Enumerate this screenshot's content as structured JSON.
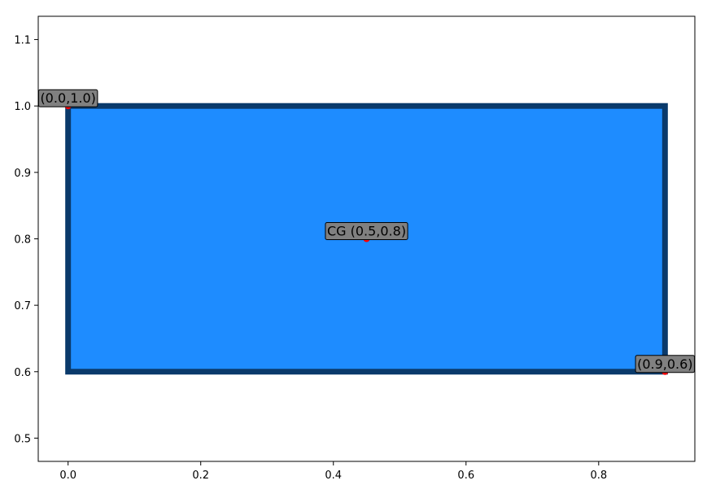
{
  "chart_data": {
    "type": "shape",
    "title": "",
    "xlabel": "",
    "ylabel": "",
    "xlim": [
      -0.045,
      0.945
    ],
    "ylim": [
      0.465,
      1.135
    ],
    "xticks": [
      0.0,
      0.2,
      0.4,
      0.6,
      0.8
    ],
    "xtick_labels": [
      "0.0",
      "0.2",
      "0.4",
      "0.6",
      "0.8"
    ],
    "yticks": [
      0.5,
      0.6,
      0.7,
      0.8,
      0.9,
      1.0,
      1.1
    ],
    "ytick_labels": [
      "0.5",
      "0.6",
      "0.7",
      "0.8",
      "0.9",
      "1.0",
      "1.1"
    ],
    "grid": false,
    "rectangle": {
      "x0": 0.0,
      "x1": 0.9,
      "y0": 0.6,
      "y1": 1.0,
      "fill_color": "#1e8cff",
      "edge_color": "#0a3a6b"
    },
    "points": [
      {
        "x": 0.0,
        "y": 1.0,
        "label": "(0.0,1.0)"
      },
      {
        "x": 0.45,
        "y": 0.8,
        "label": "CG (0.5,0.8)"
      },
      {
        "x": 0.9,
        "y": 0.6,
        "label": "(0.9,0.6)"
      }
    ],
    "point_color": "#ff0000",
    "label_box_color": "#808080"
  }
}
